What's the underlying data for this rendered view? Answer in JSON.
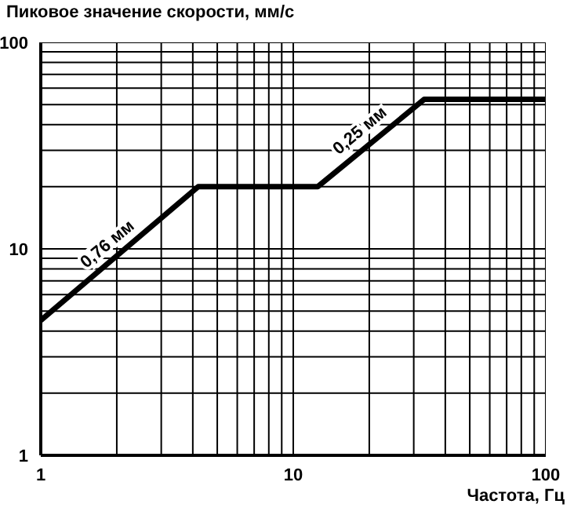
{
  "chart_data": {
    "type": "line",
    "ylabel": "Пиковое значение скорости, мм/с",
    "xlabel": "Частота, Гц",
    "x": [
      1,
      4.2,
      12.5,
      33,
      100
    ],
    "series": [
      {
        "color": "#000000",
        "values": [
          4.5,
          20,
          20,
          53,
          53
        ]
      }
    ],
    "log": "xy",
    "grid": true,
    "marker": "none",
    "line_style": "solid",
    "xlim": [
      1,
      100
    ],
    "xticks": [
      1,
      {
        "value": 2,
        "label": null
      },
      {
        "value": 3,
        "label": null
      },
      {
        "value": 4,
        "label": null
      },
      {
        "value": 5,
        "label": null
      },
      {
        "value": 6,
        "label": null
      },
      {
        "value": 7,
        "label": null
      },
      {
        "value": 8,
        "label": null
      },
      {
        "value": 9,
        "label": null
      },
      10,
      {
        "value": 20,
        "label": null
      },
      {
        "value": 30,
        "label": null
      },
      {
        "value": 40,
        "label": null
      },
      {
        "value": 50,
        "label": null
      },
      {
        "value": 60,
        "label": null
      },
      {
        "value": 70,
        "label": null
      },
      {
        "value": 80,
        "label": null
      },
      {
        "value": 90,
        "label": null
      },
      100
    ],
    "ylim": [
      1,
      100
    ],
    "yticks": [
      1,
      {
        "value": 2,
        "label": null
      },
      {
        "value": 3,
        "label": null
      },
      {
        "value": 4,
        "label": null
      },
      {
        "value": 5,
        "label": null
      },
      {
        "value": 6,
        "label": null
      },
      {
        "value": 7,
        "label": null
      },
      {
        "value": 8,
        "label": null
      },
      {
        "value": 9,
        "label": null
      },
      10,
      {
        "value": 20,
        "label": null
      },
      {
        "value": 30,
        "label": null
      },
      {
        "value": 40,
        "label": null
      },
      {
        "value": 50,
        "label": null
      },
      {
        "value": 60,
        "label": null
      },
      {
        "value": 70,
        "label": null
      },
      {
        "value": 80,
        "label": null
      },
      {
        "value": 90,
        "label": null
      },
      100
    ],
    "annotations": [
      {
        "text": "0,76 мм",
        "x": 2,
        "y": 9.3
      },
      {
        "text": "0,25 мм",
        "x": 20,
        "y": 33
      }
    ]
  }
}
